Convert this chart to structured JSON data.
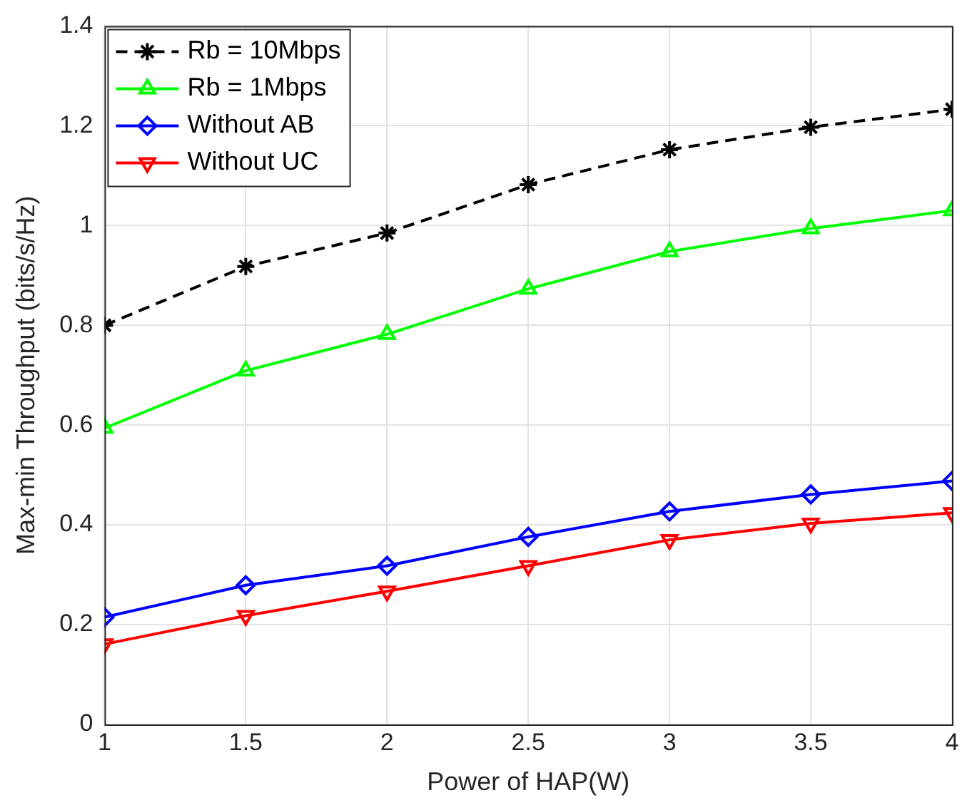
{
  "chart_data": {
    "type": "line",
    "xlabel": "Power of HAP(W)",
    "ylabel": "Max-min Throughput (bits/s/Hz)",
    "x": [
      1,
      1.5,
      2,
      2.5,
      3,
      3.5,
      4
    ],
    "series": [
      {
        "name": "Rb = 10Mbps",
        "color": "#000000",
        "marker": "cross",
        "line_style": "dashed",
        "values": [
          0.8,
          0.918,
          0.985,
          1.082,
          1.152,
          1.197,
          1.233
        ]
      },
      {
        "name": "Rb = 1Mbps",
        "color": "#00ff00",
        "marker": "triangle",
        "line_style": "solid",
        "values": [
          0.594,
          0.709,
          0.782,
          0.873,
          0.948,
          0.994,
          1.03
        ]
      },
      {
        "name": "Without AB",
        "color": "#0000ff",
        "marker": "diamond",
        "line_style": "solid",
        "values": [
          0.215,
          0.279,
          0.318,
          0.376,
          0.427,
          0.461,
          0.488
        ]
      },
      {
        "name": "Without UC",
        "color": "#ff0000",
        "marker": "triangle_down",
        "line_style": "solid",
        "values": [
          0.161,
          0.218,
          0.267,
          0.318,
          0.37,
          0.403,
          0.424
        ]
      }
    ],
    "xlim": [
      1,
      4
    ],
    "xticks": [
      1,
      1.5,
      2,
      2.5,
      3,
      3.5,
      4
    ],
    "ylim": [
      0,
      1.4
    ],
    "yticks": [
      0,
      0.2,
      0.4,
      0.6,
      0.8,
      1,
      1.2,
      1.4
    ],
    "grid": true,
    "legend": "top left"
  }
}
